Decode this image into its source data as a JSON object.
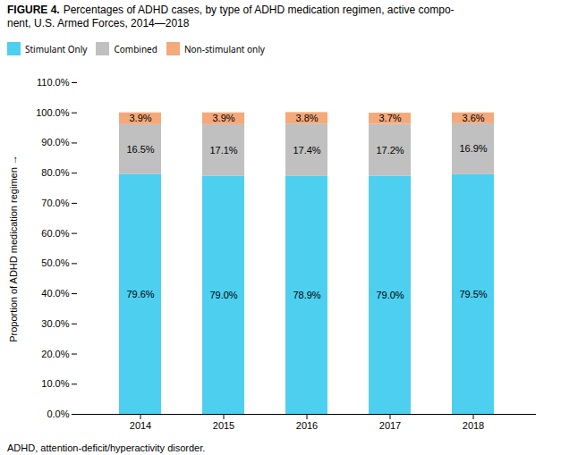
{
  "chart_data": {
    "type": "bar",
    "stacked": true,
    "title": "FIGURE 4.",
    "subtitle": "Percentages of ADHD cases, by type of ADHD medication regimen, active compo-\nnent, U.S. Armed Forces, 2014—2018",
    "annotations": [
      "ADHD, attention-deficit/hyperactivity disorder."
    ],
    "categories": [
      "2014",
      "2015",
      "2016",
      "2017",
      "2018"
    ],
    "series": [
      {
        "name": "Stimulant Only",
        "color": "#4DCFF0",
        "values": [
          79.6,
          79.0,
          78.9,
          79.0,
          79.5
        ],
        "value_labels": [
          "79.6%",
          "79.0%",
          "78.9%",
          "79.0%",
          "79.5%"
        ]
      },
      {
        "name": "Combined",
        "color": "#C0C0C0",
        "values": [
          16.5,
          17.1,
          17.4,
          17.2,
          16.9
        ],
        "value_labels": [
          "16.5%",
          "17.1%",
          "17.4%",
          "17.2%",
          "16.9%"
        ]
      },
      {
        "name": "Non-stimulant only",
        "color": "#F4A97A",
        "values": [
          3.9,
          3.9,
          3.8,
          3.7,
          3.6
        ],
        "value_labels": [
          "3.9%",
          "3.9%",
          "3.8%",
          "3.7%",
          "3.6%"
        ]
      }
    ],
    "ylabel": "Proportion of ADHD medication regimen",
    "ylim": [
      0,
      110
    ],
    "yticks": [
      {
        "value": 0,
        "label": "0.0%"
      },
      {
        "value": 10,
        "label": "10.0%"
      },
      {
        "value": 20,
        "label": "20.0%"
      },
      {
        "value": 30,
        "label": "30.0%"
      },
      {
        "value": 40,
        "label": "40.0%"
      },
      {
        "value": 50,
        "label": "50.0%"
      },
      {
        "value": 60,
        "label": "60.0%"
      },
      {
        "value": 70,
        "label": "70.0%"
      },
      {
        "value": 80,
        "label": "80.0%"
      },
      {
        "value": 90,
        "label": "90.0%"
      },
      {
        "value": 100,
        "label": "100.0%"
      },
      {
        "value": 110,
        "label": "110.0%"
      }
    ],
    "grid": false,
    "legend": "top",
    "data_labels": true
  }
}
